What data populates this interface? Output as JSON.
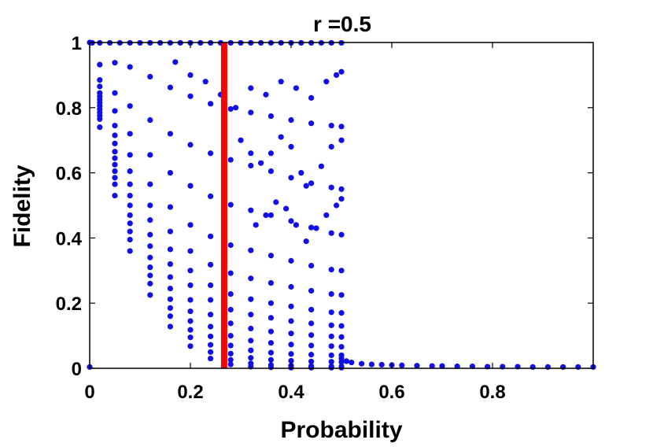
{
  "chart_data": {
    "type": "scatter",
    "title": "r =0.5",
    "xlabel": "Probability",
    "ylabel": "Fidelity",
    "xlim": [
      0,
      1
    ],
    "ylim": [
      0,
      1
    ],
    "xticks": [
      0,
      0.2,
      0.4,
      0.6,
      0.8
    ],
    "xtick_labels": [
      "0",
      "0.2",
      "0.4",
      "0.6",
      "0.8"
    ],
    "yticks": [
      0,
      0.2,
      0.4,
      0.6,
      0.8,
      1
    ],
    "ytick_labels": [
      "0",
      "0.2",
      "0.4",
      "0.6",
      "0.8",
      "1"
    ],
    "grid": false,
    "colors": {
      "points": "#1010e6",
      "threshold": "#ff0000"
    },
    "threshold_line": {
      "x": 0.267
    },
    "series": [
      {
        "values": [
          [
            0.02,
            0.932
          ],
          [
            0.05,
            0.938
          ],
          [
            0.08,
            0.925
          ],
          [
            0.12,
            0.895
          ],
          [
            0.16,
            0.862
          ],
          [
            0.2,
            0.835
          ],
          [
            0.24,
            0.812
          ],
          [
            0.28,
            0.796
          ],
          [
            0.32,
            0.785
          ],
          [
            0.36,
            0.774
          ],
          [
            0.4,
            0.762
          ],
          [
            0.44,
            0.752
          ],
          [
            0.48,
            0.745
          ],
          [
            0.5,
            0.742
          ]
        ]
      },
      {
        "values": [
          [
            0.02,
            0.885
          ],
          [
            0.05,
            0.845
          ],
          [
            0.08,
            0.805
          ],
          [
            0.12,
            0.762
          ],
          [
            0.16,
            0.72
          ],
          [
            0.2,
            0.686
          ],
          [
            0.24,
            0.66
          ],
          [
            0.28,
            0.64
          ],
          [
            0.32,
            0.622
          ],
          [
            0.36,
            0.605
          ],
          [
            0.4,
            0.585
          ],
          [
            0.44,
            0.568
          ],
          [
            0.48,
            0.555
          ],
          [
            0.5,
            0.55
          ]
        ]
      },
      {
        "values": [
          [
            0.02,
            0.865
          ],
          [
            0.05,
            0.79
          ],
          [
            0.08,
            0.72
          ],
          [
            0.12,
            0.655
          ],
          [
            0.16,
            0.6
          ],
          [
            0.2,
            0.56
          ],
          [
            0.24,
            0.528
          ],
          [
            0.28,
            0.502
          ],
          [
            0.32,
            0.485
          ],
          [
            0.36,
            0.47
          ],
          [
            0.4,
            0.452
          ],
          [
            0.44,
            0.432
          ],
          [
            0.48,
            0.415
          ],
          [
            0.5,
            0.41
          ]
        ]
      },
      {
        "values": [
          [
            0.02,
            0.845
          ],
          [
            0.05,
            0.745
          ],
          [
            0.08,
            0.655
          ],
          [
            0.12,
            0.565
          ],
          [
            0.16,
            0.495
          ],
          [
            0.2,
            0.44
          ],
          [
            0.24,
            0.405
          ],
          [
            0.28,
            0.378
          ],
          [
            0.32,
            0.362
          ],
          [
            0.36,
            0.346
          ],
          [
            0.4,
            0.33
          ],
          [
            0.44,
            0.315
          ],
          [
            0.48,
            0.303
          ],
          [
            0.5,
            0.3
          ]
        ]
      },
      {
        "values": [
          [
            0.02,
            0.835
          ],
          [
            0.05,
            0.715
          ],
          [
            0.08,
            0.605
          ],
          [
            0.12,
            0.5
          ],
          [
            0.16,
            0.42
          ],
          [
            0.2,
            0.36
          ],
          [
            0.24,
            0.318
          ],
          [
            0.28,
            0.292
          ],
          [
            0.32,
            0.276
          ],
          [
            0.36,
            0.262
          ],
          [
            0.4,
            0.25
          ],
          [
            0.44,
            0.238
          ],
          [
            0.48,
            0.228
          ],
          [
            0.5,
            0.225
          ]
        ]
      },
      {
        "values": [
          [
            0.02,
            0.825
          ],
          [
            0.05,
            0.69
          ],
          [
            0.08,
            0.565
          ],
          [
            0.12,
            0.455
          ],
          [
            0.16,
            0.365
          ],
          [
            0.2,
            0.3
          ],
          [
            0.24,
            0.255
          ],
          [
            0.28,
            0.228
          ],
          [
            0.32,
            0.212
          ],
          [
            0.36,
            0.2
          ],
          [
            0.4,
            0.19
          ],
          [
            0.44,
            0.18
          ],
          [
            0.48,
            0.172
          ],
          [
            0.5,
            0.17
          ]
        ]
      },
      {
        "values": [
          [
            0.02,
            0.815
          ],
          [
            0.05,
            0.665
          ],
          [
            0.08,
            0.53
          ],
          [
            0.12,
            0.41
          ],
          [
            0.16,
            0.32
          ],
          [
            0.2,
            0.255
          ],
          [
            0.24,
            0.21
          ],
          [
            0.28,
            0.18
          ],
          [
            0.32,
            0.165
          ],
          [
            0.36,
            0.155
          ],
          [
            0.4,
            0.145
          ],
          [
            0.44,
            0.138
          ],
          [
            0.48,
            0.132
          ],
          [
            0.5,
            0.13
          ]
        ]
      },
      {
        "values": [
          [
            0.02,
            0.805
          ],
          [
            0.05,
            0.645
          ],
          [
            0.08,
            0.5
          ],
          [
            0.12,
            0.375
          ],
          [
            0.16,
            0.28
          ],
          [
            0.2,
            0.21
          ],
          [
            0.24,
            0.165
          ],
          [
            0.28,
            0.138
          ],
          [
            0.32,
            0.122
          ],
          [
            0.36,
            0.113
          ],
          [
            0.4,
            0.107
          ],
          [
            0.44,
            0.102
          ],
          [
            0.48,
            0.098
          ],
          [
            0.5,
            0.096
          ]
        ]
      },
      {
        "values": [
          [
            0.02,
            0.795
          ],
          [
            0.05,
            0.625
          ],
          [
            0.08,
            0.47
          ],
          [
            0.12,
            0.34
          ],
          [
            0.16,
            0.245
          ],
          [
            0.2,
            0.175
          ],
          [
            0.24,
            0.128
          ],
          [
            0.28,
            0.1
          ],
          [
            0.32,
            0.085
          ],
          [
            0.36,
            0.078
          ],
          [
            0.4,
            0.073
          ],
          [
            0.44,
            0.07
          ],
          [
            0.48,
            0.068
          ],
          [
            0.5,
            0.066
          ]
        ]
      },
      {
        "values": [
          [
            0.02,
            0.785
          ],
          [
            0.05,
            0.605
          ],
          [
            0.08,
            0.445
          ],
          [
            0.12,
            0.31
          ],
          [
            0.16,
            0.212
          ],
          [
            0.2,
            0.145
          ],
          [
            0.24,
            0.098
          ],
          [
            0.28,
            0.07
          ],
          [
            0.32,
            0.055
          ],
          [
            0.36,
            0.048
          ],
          [
            0.4,
            0.044
          ],
          [
            0.44,
            0.042
          ],
          [
            0.48,
            0.04
          ],
          [
            0.5,
            0.04
          ]
        ]
      },
      {
        "values": [
          [
            0.02,
            0.775
          ],
          [
            0.05,
            0.585
          ],
          [
            0.08,
            0.42
          ],
          [
            0.12,
            0.285
          ],
          [
            0.16,
            0.185
          ],
          [
            0.2,
            0.118
          ],
          [
            0.24,
            0.072
          ],
          [
            0.28,
            0.045
          ],
          [
            0.32,
            0.032
          ],
          [
            0.36,
            0.026
          ],
          [
            0.4,
            0.023
          ],
          [
            0.44,
            0.021
          ],
          [
            0.48,
            0.02
          ],
          [
            0.5,
            0.019
          ]
        ]
      },
      {
        "values": [
          [
            0.02,
            0.765
          ],
          [
            0.05,
            0.565
          ],
          [
            0.08,
            0.395
          ],
          [
            0.12,
            0.26
          ],
          [
            0.16,
            0.16
          ],
          [
            0.2,
            0.095
          ],
          [
            0.24,
            0.05
          ],
          [
            0.28,
            0.026
          ],
          [
            0.32,
            0.015
          ],
          [
            0.36,
            0.01
          ],
          [
            0.4,
            0.008
          ],
          [
            0.44,
            0.007
          ],
          [
            0.48,
            0.006
          ],
          [
            0.5,
            0.006
          ]
        ]
      },
      {
        "values": [
          [
            0.02,
            0.74
          ],
          [
            0.05,
            0.53
          ],
          [
            0.08,
            0.36
          ],
          [
            0.12,
            0.225
          ],
          [
            0.16,
            0.128
          ],
          [
            0.2,
            0.068
          ],
          [
            0.24,
            0.03
          ],
          [
            0.28,
            0.012
          ],
          [
            0.32,
            0.005
          ],
          [
            0.36,
            0.003
          ],
          [
            0.4,
            0.002
          ],
          [
            0.44,
            0.002
          ],
          [
            0.48,
            0.002
          ],
          [
            0.5,
            0.002
          ]
        ]
      },
      {
        "values": [
          [
            0.005,
            0.999
          ],
          [
            0.02,
            0.999
          ],
          [
            0.04,
            0.999
          ],
          [
            0.06,
            0.999
          ],
          [
            0.08,
            0.999
          ],
          [
            0.1,
            0.999
          ],
          [
            0.12,
            0.999
          ],
          [
            0.14,
            0.999
          ],
          [
            0.16,
            0.999
          ],
          [
            0.18,
            0.999
          ],
          [
            0.2,
            0.999
          ],
          [
            0.22,
            0.999
          ],
          [
            0.24,
            0.999
          ],
          [
            0.26,
            0.999
          ],
          [
            0.28,
            0.999
          ],
          [
            0.3,
            0.999
          ],
          [
            0.32,
            0.999
          ],
          [
            0.34,
            0.999
          ],
          [
            0.36,
            0.999
          ],
          [
            0.38,
            0.999
          ],
          [
            0.4,
            0.999
          ],
          [
            0.42,
            0.999
          ],
          [
            0.44,
            0.999
          ],
          [
            0.46,
            0.999
          ],
          [
            0.48,
            0.999
          ],
          [
            0.5,
            0.999
          ]
        ]
      },
      {
        "values": [
          [
            0.17,
            0.94
          ],
          [
            0.2,
            0.9
          ],
          [
            0.23,
            0.88
          ],
          [
            0.26,
            0.84
          ],
          [
            0.29,
            0.8
          ],
          [
            0.32,
            0.86
          ],
          [
            0.35,
            0.84
          ],
          [
            0.38,
            0.88
          ],
          [
            0.41,
            0.86
          ],
          [
            0.44,
            0.83
          ],
          [
            0.47,
            0.88
          ],
          [
            0.49,
            0.9
          ],
          [
            0.5,
            0.91
          ]
        ]
      },
      {
        "values": [
          [
            0.3,
            0.7
          ],
          [
            0.32,
            0.66
          ],
          [
            0.34,
            0.63
          ],
          [
            0.36,
            0.66
          ],
          [
            0.38,
            0.71
          ],
          [
            0.4,
            0.68
          ],
          [
            0.42,
            0.6
          ],
          [
            0.43,
            0.56
          ],
          [
            0.46,
            0.62
          ],
          [
            0.48,
            0.68
          ],
          [
            0.5,
            0.7
          ]
        ]
      },
      {
        "values": [
          [
            0.33,
            0.44
          ],
          [
            0.35,
            0.47
          ],
          [
            0.37,
            0.51
          ],
          [
            0.39,
            0.49
          ],
          [
            0.41,
            0.44
          ],
          [
            0.43,
            0.39
          ],
          [
            0.45,
            0.43
          ],
          [
            0.47,
            0.47
          ],
          [
            0.49,
            0.5
          ],
          [
            0.5,
            0.52
          ]
        ]
      },
      {
        "values": [
          [
            0.5,
            0.03
          ],
          [
            0.51,
            0.022
          ],
          [
            0.52,
            0.018
          ],
          [
            0.54,
            0.014
          ],
          [
            0.56,
            0.012
          ],
          [
            0.58,
            0.011
          ],
          [
            0.6,
            0.01
          ],
          [
            0.62,
            0.009
          ],
          [
            0.65,
            0.008
          ],
          [
            0.68,
            0.007
          ],
          [
            0.7,
            0.007
          ],
          [
            0.73,
            0.006
          ],
          [
            0.76,
            0.006
          ],
          [
            0.79,
            0.005
          ],
          [
            0.82,
            0.005
          ],
          [
            0.85,
            0.005
          ],
          [
            0.88,
            0.004
          ],
          [
            0.91,
            0.004
          ],
          [
            0.94,
            0.004
          ],
          [
            0.97,
            0.004
          ],
          [
            1.0,
            0.004
          ]
        ]
      },
      {
        "values": [
          [
            0.0,
            0.004
          ],
          [
            0.0,
            1.0
          ]
        ]
      }
    ]
  }
}
